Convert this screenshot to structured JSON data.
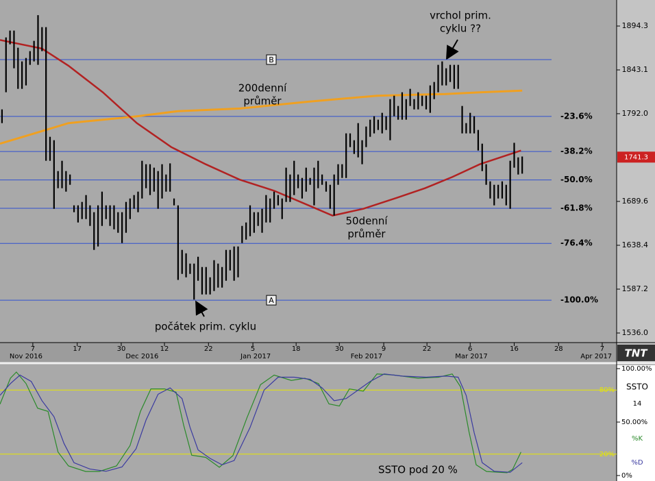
{
  "logo": "TNT",
  "chart_data": [
    {
      "type": "ohlc",
      "color": "#000000",
      "x": [
        0,
        1,
        2,
        3,
        4,
        5,
        6,
        7,
        8,
        9,
        10,
        11,
        12,
        13,
        14,
        15,
        16,
        17,
        18,
        19,
        20,
        21,
        22,
        23,
        24,
        25,
        26,
        27,
        28,
        29,
        30,
        31,
        32,
        33,
        34,
        35,
        36,
        37,
        38,
        39,
        40,
        41,
        42,
        43,
        44,
        45,
        46,
        47,
        48,
        49,
        50,
        51,
        52,
        53,
        54,
        55,
        56,
        57,
        58,
        59,
        60,
        61,
        62,
        63,
        64,
        65,
        66,
        67,
        68,
        69,
        70,
        71,
        72,
        73,
        74,
        75,
        76,
        77,
        78,
        79,
        80,
        81,
        82,
        83,
        84,
        85,
        86,
        87,
        88,
        89,
        90,
        91,
        92,
        93,
        94,
        95,
        96,
        97,
        98,
        99,
        100,
        101,
        102,
        103,
        104,
        105,
        106,
        107,
        108,
        109,
        110,
        111,
        112,
        113,
        114,
        115,
        116,
        117,
        118,
        119,
        120,
        121,
        122,
        123,
        124,
        125,
        126,
        127,
        128,
        129,
        130
      ],
      "high": [
        1797,
        1881,
        1889,
        1889,
        1869,
        1853,
        1857,
        1865,
        1877,
        1907,
        1893,
        1893,
        1765,
        1761,
        1725,
        1737,
        1725,
        1721,
        1685,
        1685,
        1689,
        1697,
        1685,
        1677,
        1685,
        1701,
        1685,
        1685,
        1685,
        1677,
        1677,
        1689,
        1693,
        1697,
        1701,
        1737,
        1733,
        1733,
        1729,
        1725,
        1733,
        1721,
        1734,
        1693,
        1685,
        1633,
        1629,
        1617,
        1617,
        1625,
        1613,
        1613,
        1601,
        1621,
        1617,
        1613,
        1633,
        1633,
        1637,
        1637,
        1661,
        1665,
        1685,
        1677,
        1677,
        1681,
        1697,
        1693,
        1701,
        1697,
        1693,
        1729,
        1721,
        1737,
        1721,
        1717,
        1729,
        1717,
        1729,
        1737,
        1721,
        1713,
        1709,
        1721,
        1733,
        1733,
        1769,
        1769,
        1761,
        1781,
        1761,
        1777,
        1785,
        1789,
        1785,
        1793,
        1789,
        1809,
        1813,
        1801,
        1817,
        1809,
        1821,
        1809,
        1817,
        1813,
        1813,
        1825,
        1829,
        1849,
        1853,
        1845,
        1849,
        1849,
        1849,
        1801,
        1781,
        1793,
        1789,
        1773,
        1757,
        1733,
        1713,
        1709,
        1709,
        1713,
        1709,
        1737,
        1758,
        1741,
        1742
      ],
      "low": [
        1781,
        1817,
        1873,
        1845,
        1821,
        1821,
        1825,
        1849,
        1853,
        1849,
        1865,
        1737,
        1737,
        1681,
        1705,
        1705,
        1701,
        1709,
        1677,
        1665,
        1669,
        1669,
        1661,
        1633,
        1637,
        1661,
        1669,
        1661,
        1657,
        1653,
        1641,
        1653,
        1669,
        1681,
        1677,
        1693,
        1705,
        1697,
        1701,
        1681,
        1693,
        1701,
        1701,
        1685,
        1598,
        1605,
        1601,
        1605,
        1575,
        1597,
        1581,
        1581,
        1581,
        1585,
        1589,
        1589,
        1597,
        1609,
        1597,
        1601,
        1641,
        1645,
        1649,
        1653,
        1661,
        1653,
        1665,
        1665,
        1681,
        1685,
        1669,
        1689,
        1689,
        1697,
        1705,
        1693,
        1701,
        1709,
        1685,
        1705,
        1709,
        1701,
        1681,
        1673,
        1709,
        1717,
        1717,
        1753,
        1745,
        1741,
        1733,
        1753,
        1765,
        1769,
        1773,
        1769,
        1773,
        1761,
        1789,
        1785,
        1785,
        1785,
        1801,
        1797,
        1797,
        1801,
        1797,
        1793,
        1809,
        1817,
        1825,
        1825,
        1829,
        1821,
        1821,
        1769,
        1769,
        1769,
        1769,
        1749,
        1725,
        1709,
        1693,
        1685,
        1693,
        1693,
        1685,
        1681,
        1729,
        1721,
        1722
      ],
      "series": [
        {
          "color": "#b22222",
          "x": [
            -0.5,
            10,
            16.6,
            25.2,
            33.7,
            42.3,
            50.9,
            59.4,
            68,
            76.6,
            82.6,
            90.3,
            98.8,
            105.7,
            112.5,
            119.4,
            129.7
          ],
          "values": [
            1878,
            1868,
            1848,
            1817,
            1781,
            1753,
            1733,
            1715,
            1702,
            1685,
            1673,
            1681,
            1694,
            1705,
            1718,
            1733,
            1749
          ]
        },
        {
          "color": "#f0a020",
          "x": [
            -0.5,
            8.1,
            16.6,
            25.2,
            33.7,
            44,
            59.4,
            76.6,
            93.7,
            110.8,
            119.4,
            130
          ],
          "values": [
            1757,
            1769,
            1781,
            1785,
            1789,
            1795,
            1798,
            1806,
            1813,
            1815,
            1817,
            1819
          ]
        }
      ],
      "xlim": [
        -0.5,
        153.6
      ],
      "xticks": [
        {
          "value": 7.7,
          "label": "7"
        },
        {
          "value": 18.8,
          "label": "17"
        },
        {
          "value": 29.8,
          "label": "30"
        },
        {
          "value": 40.6,
          "label": "12"
        },
        {
          "value": 51.6,
          "label": "22"
        },
        {
          "value": 62.7,
          "label": "5"
        },
        {
          "value": 73.5,
          "label": "18"
        },
        {
          "value": 84.3,
          "label": "30"
        },
        {
          "value": 95.4,
          "label": "9"
        },
        {
          "value": 106.2,
          "label": "22"
        },
        {
          "value": 117.0,
          "label": "6"
        },
        {
          "value": 128.0,
          "label": "16"
        },
        {
          "value": 139.1,
          "label": "28"
        },
        {
          "value": 150.0,
          "label": "7"
        }
      ],
      "month_ticks": [
        {
          "value": 6.0,
          "label": "Nov 2016"
        },
        {
          "value": 35.0,
          "label": "Dec 2016"
        },
        {
          "value": 63.4,
          "label": "Jan 2017"
        },
        {
          "value": 91.1,
          "label": "Feb 2017"
        },
        {
          "value": 117.3,
          "label": "Mar 2017"
        },
        {
          "value": 148.5,
          "label": "Apr 2017"
        }
      ],
      "ylim": [
        1524.8,
        1924.7
      ],
      "yticks": [
        1894.3,
        1843.1,
        {
          "value": 1792,
          "label": "1792.0"
        },
        1689.6,
        1638.4,
        1587.2,
        {
          "value": 1536,
          "label": "1536.0"
        }
      ],
      "last_price": 1741.3,
      "last_price_color": "#cc2222",
      "level_color": "#3050d0",
      "levels": [
        {
          "value": 1855.1,
          "name": "B"
        },
        {
          "value": 1788.8,
          "label": "-23.6%"
        },
        {
          "value": 1747.8,
          "label": "-38.2%"
        },
        {
          "value": 1714.7,
          "label": "-50.0%"
        },
        {
          "value": 1681.6,
          "label": "-61.8%"
        },
        {
          "value": 1640.6,
          "label": "-76.4%"
        },
        {
          "value": 1574.3,
          "label": "-100.0%",
          "name": "A"
        }
      ],
      "annotations": [
        {
          "lines": [
            "vrchol prim.",
            "cyklu ??"
          ]
        },
        {
          "lines": [
            "200denní",
            "průměr"
          ]
        },
        {
          "lines": [
            "50denní",
            "průměr"
          ]
        },
        {
          "lines": [
            "počátek prim. cyklu"
          ]
        }
      ]
    },
    {
      "type": "line",
      "indicator": "SSTO",
      "period": 14,
      "xlim": [
        -0.5,
        153.6
      ],
      "ylim": [
        0,
        100
      ],
      "yticks": [
        {
          "value": 100,
          "label": "100.00%"
        },
        {
          "value": 50,
          "label": "50.00%"
        },
        {
          "value": 0,
          "label": "0%"
        }
      ],
      "level_color": "#e8e800",
      "levels": [
        {
          "value": 80,
          "label": "80%"
        },
        {
          "value": 20,
          "label": "20%"
        }
      ],
      "series": [
        {
          "name": "%K",
          "color": "#2a8a2a",
          "x": [
            -0.5,
            2.1,
            3.6,
            6.0,
            8.9,
            11.5,
            14.0,
            16.6,
            20.9,
            24.3,
            28.6,
            32.0,
            34.6,
            37.2,
            40.6,
            43.5,
            45.4,
            47.4,
            50.9,
            54.3,
            57.7,
            61.2,
            64.6,
            68.0,
            72.3,
            75.7,
            79.1,
            81.7,
            84.3,
            86.8,
            90.3,
            93.7,
            98.0,
            104.0,
            109.1,
            112.5,
            114.6,
            116.7,
            118.5,
            121.1,
            126.2,
            127.6,
            129.7
          ],
          "values": [
            66.7,
            91,
            96.8,
            86,
            63,
            60,
            22,
            9,
            3.8,
            3.8,
            9,
            28,
            60,
            81,
            81,
            78,
            47,
            19,
            17,
            7.7,
            18.6,
            54,
            85,
            94,
            89,
            91,
            86,
            67,
            65,
            81,
            79,
            95,
            94,
            91,
            92,
            95,
            83,
            41,
            10,
            3.8,
            2.6,
            5.8,
            22
          ]
        },
        {
          "name": "%D",
          "color": "#3a3aa0",
          "x": [
            -0.5,
            2.1,
            4.5,
            7.3,
            10,
            13,
            15.5,
            18,
            22,
            26,
            30,
            33.5,
            36,
            39,
            42,
            45,
            47,
            49,
            52,
            55,
            58,
            62,
            65.5,
            69,
            73,
            77,
            80,
            83,
            86,
            89,
            92,
            95.5,
            100,
            106,
            111,
            114,
            116,
            118,
            120,
            123,
            127,
            130
          ],
          "values": [
            75,
            86,
            94,
            88,
            70,
            55,
            30,
            12,
            6,
            4,
            8,
            25,
            52,
            76,
            82,
            72,
            45,
            24,
            16,
            10,
            14,
            45,
            80,
            92,
            92,
            90,
            82,
            70,
            72,
            80,
            88,
            95,
            93,
            92,
            93,
            92,
            75,
            40,
            12,
            4,
            3,
            12
          ]
        }
      ],
      "annotation": "SSTO pod 20 %"
    }
  ]
}
